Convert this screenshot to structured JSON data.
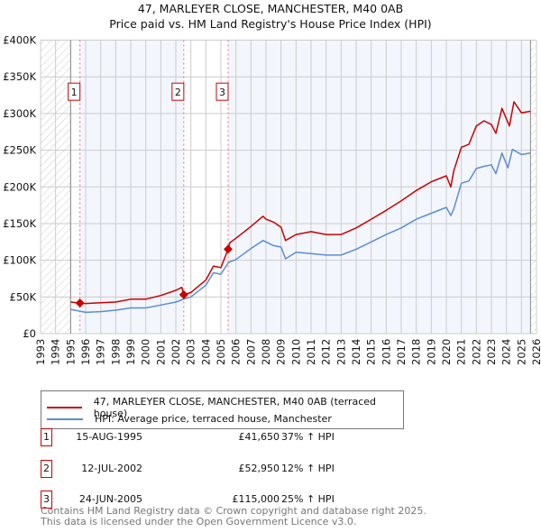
{
  "title_line1": "47, MARLEYER CLOSE, MANCHESTER, M40 0AB",
  "title_line2": "Price paid vs. HM Land Registry's House Price Index (HPI)",
  "chart_data": {
    "type": "line",
    "title": "47, MARLEYER CLOSE, MANCHESTER, M40 0AB - Price paid vs. HM Land Registry's House Price Index (HPI)",
    "xlim": [
      1993,
      2026
    ],
    "ylim": [
      0,
      400000
    ],
    "x_ticks": [
      "1993",
      "1994",
      "1995",
      "1996",
      "1997",
      "1998",
      "1999",
      "2000",
      "2001",
      "2002",
      "2003",
      "2004",
      "2005",
      "2006",
      "2007",
      "2008",
      "2009",
      "2010",
      "2011",
      "2012",
      "2013",
      "2014",
      "2015",
      "2016",
      "2017",
      "2018",
      "2019",
      "2020",
      "2021",
      "2022",
      "2023",
      "2024",
      "2025",
      "2026"
    ],
    "y_ticks": [
      {
        "v": 0,
        "label": "£0"
      },
      {
        "v": 50000,
        "label": "£50K"
      },
      {
        "v": 100000,
        "label": "£100K"
      },
      {
        "v": 150000,
        "label": "£150K"
      },
      {
        "v": 200000,
        "label": "£200K"
      },
      {
        "v": 250000,
        "label": "£250K"
      },
      {
        "v": 300000,
        "label": "£300K"
      },
      {
        "v": 350000,
        "label": "£350K"
      },
      {
        "v": 400000,
        "label": "£400K"
      }
    ],
    "data_range": [
      1995,
      2025.6
    ],
    "series": [
      {
        "name": "47, MARLEYER CLOSE, MANCHESTER, M40 0AB (terraced house)",
        "color": "#cc0000",
        "x": [
          1995,
          1995.62,
          1996,
          1997,
          1998,
          1999,
          2000,
          2001,
          2002,
          2002.4,
          2002.53,
          2003,
          2004,
          2004.5,
          2005,
          2005.48,
          2005.6,
          2006,
          2007,
          2007.8,
          2008,
          2008.5,
          2009,
          2009.3,
          2010,
          2011,
          2012,
          2013,
          2014,
          2015,
          2016,
          2017,
          2018,
          2019,
          2020,
          2020.3,
          2020.5,
          2021,
          2021.5,
          2022,
          2022.5,
          2023,
          2023.3,
          2023.7,
          2024.2,
          2024.5,
          2025,
          2025.6
        ],
        "y": [
          43000,
          41650,
          41000,
          42000,
          43000,
          47000,
          47000,
          52000,
          59000,
          63000,
          52950,
          56000,
          73000,
          92000,
          90000,
          115000,
          124000,
          130000,
          146000,
          160000,
          156000,
          152000,
          145000,
          127000,
          135000,
          139000,
          135000,
          135000,
          144000,
          156000,
          168000,
          181000,
          195000,
          207000,
          215000,
          200000,
          222000,
          254000,
          258000,
          283000,
          290000,
          285000,
          273000,
          307000,
          283000,
          316000,
          301000,
          303000
        ]
      },
      {
        "name": "HPI: Average price, terraced house, Manchester",
        "color": "#5b8dd6",
        "x": [
          1995,
          1996,
          1997,
          1998,
          1999,
          2000,
          2001,
          2002,
          2002.5,
          2003,
          2004,
          2004.5,
          2005,
          2005.5,
          2006,
          2007,
          2007.8,
          2008,
          2008.5,
          2009,
          2009.3,
          2010,
          2011,
          2012,
          2013,
          2014,
          2015,
          2016,
          2017,
          2018,
          2019,
          2020,
          2020.3,
          2020.5,
          2021,
          2021.5,
          2022,
          2022.5,
          2023,
          2023.3,
          2023.7,
          2024.1,
          2024.4,
          2025,
          2025.6
        ],
        "y": [
          33000,
          29000,
          30000,
          32000,
          35000,
          35000,
          39000,
          43000,
          47000,
          50000,
          66000,
          83000,
          81000,
          97000,
          101000,
          116000,
          127000,
          125000,
          120000,
          118000,
          102000,
          111000,
          109000,
          107000,
          107000,
          115000,
          125000,
          135000,
          144000,
          156000,
          164000,
          172000,
          161000,
          170000,
          205000,
          208000,
          225000,
          228000,
          230000,
          218000,
          246000,
          226000,
          251000,
          244000,
          246000
        ]
      }
    ],
    "sales": [
      {
        "num": "1",
        "x": 1995.62,
        "price": 41650
      },
      {
        "num": "2",
        "x": 2002.53,
        "price": 52950
      },
      {
        "num": "3",
        "x": 2005.48,
        "price": 115000
      }
    ]
  },
  "legend": {
    "property": "47, MARLEYER CLOSE, MANCHESTER, M40 0AB (terraced house)",
    "hpi": "HPI: Average price, terraced house, Manchester"
  },
  "sales_table": [
    {
      "num": "1",
      "date": "15-AUG-1995",
      "price": "£41,650",
      "hpi": "37% ↑ HPI"
    },
    {
      "num": "2",
      "date": "12-JUL-2002",
      "price": "£52,950",
      "hpi": "12% ↑ HPI"
    },
    {
      "num": "3",
      "date": "24-JUN-2005",
      "price": "£115,000",
      "hpi": "25% ↑ HPI"
    }
  ],
  "footer": {
    "line1": "Contains HM Land Registry data © Crown copyright and database right 2025.",
    "line2": "This data is licensed under the Open Government Licence v3.0."
  }
}
